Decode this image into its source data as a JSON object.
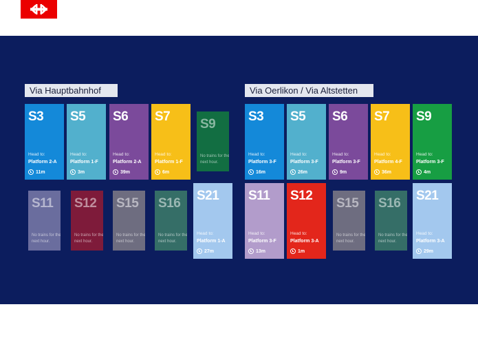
{
  "logo": {
    "icon": "sbb-logo-icon"
  },
  "sections": [
    {
      "title": "Via Hauptbahnhof",
      "trains": [
        {
          "line": "S3",
          "head_label": "Head to:",
          "platform": "Platform 2-A",
          "time": "11m",
          "color": "#1489d9",
          "active": true
        },
        {
          "line": "S5",
          "head_label": "Head to:",
          "platform": "Platform 1-F",
          "time": "3m",
          "color": "#52b0cd",
          "active": true
        },
        {
          "line": "S6",
          "head_label": "Head to:",
          "platform": "Platform 2-A",
          "time": "39m",
          "color": "#7b4a9b",
          "active": true
        },
        {
          "line": "S7",
          "head_label": "Head to:",
          "platform": "Platform 1-F",
          "time": "6m",
          "color": "#f7bf18",
          "active": true
        },
        {
          "line": "S9",
          "note": "No trains for the next hour.",
          "color": "#126e42",
          "active": false
        },
        {
          "line": "S11",
          "note": "No trains for the next hour.",
          "color": "#6a6d9e",
          "active": false
        },
        {
          "line": "S12",
          "note": "No trains for the next hour.",
          "color": "#7e1b3a",
          "active": false
        },
        {
          "line": "S15",
          "note": "No trains for the next hour.",
          "color": "#6e6d80",
          "active": false
        },
        {
          "line": "S16",
          "note": "No trains for the next hour.",
          "color": "#356e67",
          "active": false
        },
        {
          "line": "S21",
          "head_label": "Head to:",
          "platform": "Platform 1-A",
          "time": "27m",
          "color": "#a3c8ee",
          "active": true
        }
      ]
    },
    {
      "title": "Via Oerlikon / Via Altstetten",
      "trains": [
        {
          "line": "S3",
          "head_label": "Head to:",
          "platform": "Platform 3-F",
          "time": "16m",
          "color": "#1489d9",
          "active": true
        },
        {
          "line": "S5",
          "head_label": "Head to:",
          "platform": "Platform 3-F",
          "time": "26m",
          "color": "#52b0cd",
          "active": true
        },
        {
          "line": "S6",
          "head_label": "Head to:",
          "platform": "Platform 3-F",
          "time": "9m",
          "color": "#7b4a9b",
          "active": true
        },
        {
          "line": "S7",
          "head_label": "Head to:",
          "platform": "Platform 4-F",
          "time": "36m",
          "color": "#f7bf18",
          "active": true
        },
        {
          "line": "S9",
          "head_label": "Head to:",
          "platform": "Platform 3-F",
          "time": "4m",
          "color": "#179e43",
          "active": true
        },
        {
          "line": "S11",
          "head_label": "Head to:",
          "platform": "Platform 3-F",
          "time": "13m",
          "color": "#b29ccb",
          "active": true
        },
        {
          "line": "S12",
          "head_label": "Head to:",
          "platform": "Platform 3-A",
          "time": "1m",
          "color": "#e3261b",
          "active": true
        },
        {
          "line": "S15",
          "note": "No trains for the next hour.",
          "color": "#6e6d80",
          "active": false
        },
        {
          "line": "S16",
          "note": "No trains for the next hour.",
          "color": "#356e67",
          "active": false
        },
        {
          "line": "S21",
          "head_label": "Head to:",
          "platform": "Platform 3-A",
          "time": "29m",
          "color": "#a3c8ee",
          "active": true
        }
      ]
    }
  ]
}
